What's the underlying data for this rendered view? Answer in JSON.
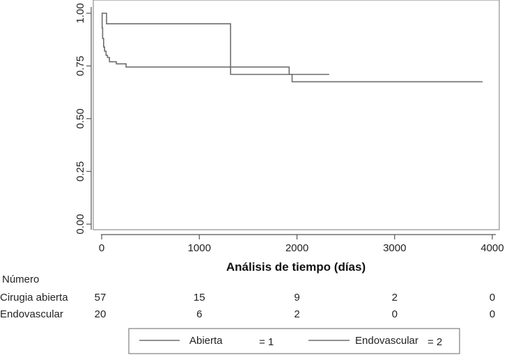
{
  "chart_data": {
    "type": "line",
    "subtype": "kaplan-meier step",
    "title": "",
    "xlabel": "Análisis de tiempo (días)",
    "ylabel": "",
    "xlim": [
      0,
      4000
    ],
    "ylim": [
      0,
      1
    ],
    "x_ticks": [
      0,
      1000,
      2000,
      3000,
      4000
    ],
    "x_tick_labels": [
      "0",
      "1000",
      "2000",
      "3000",
      "4000"
    ],
    "y_ticks": [
      0,
      0.25,
      0.5,
      0.75,
      1
    ],
    "y_tick_labels": [
      "0.00",
      "0.25",
      "0.50",
      "0.75",
      "1.00"
    ],
    "grid": false,
    "series": [
      {
        "name": "Abierta",
        "color": "#6d6d6d",
        "x": [
          0,
          5,
          10,
          20,
          30,
          45,
          60,
          80,
          100,
          150,
          250,
          1920,
          2330
        ],
        "y": [
          1.0,
          0.93,
          0.88,
          0.84,
          0.82,
          0.8,
          0.79,
          0.77,
          0.77,
          0.76,
          0.745,
          0.71,
          0.71
        ]
      },
      {
        "name": "Endovascular",
        "color": "#6d6d6d",
        "x": [
          0,
          50,
          1320,
          1950,
          3900
        ],
        "y": [
          1.0,
          0.95,
          0.71,
          0.675,
          0.675
        ]
      }
    ],
    "risk_table": {
      "header": "Número",
      "rows": [
        {
          "label": "Cirugia abierta",
          "values": [
            "57",
            "15",
            "9",
            "2",
            "0"
          ]
        },
        {
          "label": "Endovascular",
          "values": [
            "20",
            "6",
            "2",
            "0",
            "0"
          ]
        }
      ]
    },
    "legend": {
      "position": "bottom",
      "entries": [
        {
          "label": "Abierta",
          "value_text": "= 1"
        },
        {
          "label": "Endovascular",
          "value_text": "= 2"
        }
      ]
    }
  }
}
